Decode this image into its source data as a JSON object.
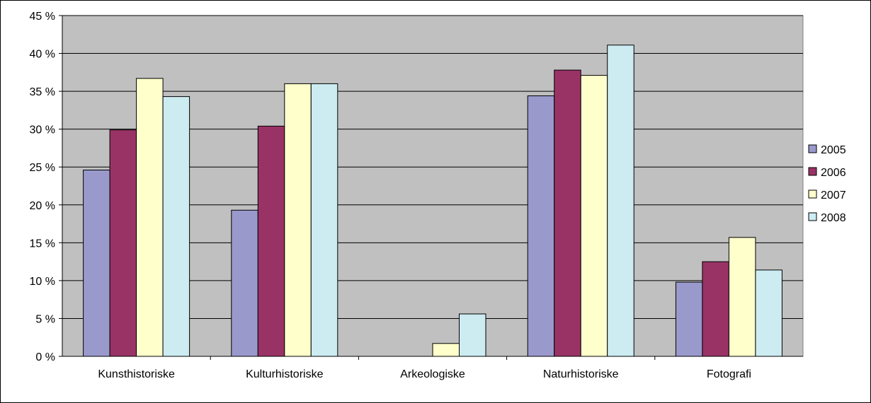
{
  "chart_data": {
    "type": "bar",
    "categories": [
      "Kunsthistoriske",
      "Kulturhistoriske",
      "Arkeologiske",
      "Naturhistoriske",
      "Fotografi"
    ],
    "series": [
      {
        "name": "2005",
        "color": "#9999cc",
        "values": [
          24.6,
          19.3,
          0,
          34.4,
          9.8
        ]
      },
      {
        "name": "2006",
        "color": "#993366",
        "values": [
          29.9,
          30.4,
          0,
          37.8,
          12.5
        ]
      },
      {
        "name": "2007",
        "color": "#ffffcc",
        "values": [
          36.7,
          36.0,
          1.7,
          37.1,
          15.7
        ]
      },
      {
        "name": "2008",
        "color": "#ccecf2",
        "values": [
          34.3,
          36.0,
          5.6,
          41.1,
          11.4
        ]
      }
    ],
    "y_ticks": [
      "0 %",
      "5 %",
      "10 %",
      "15 %",
      "20 %",
      "25 %",
      "30 %",
      "35 %",
      "40 %",
      "45 %"
    ],
    "ylim": [
      0,
      45
    ],
    "grid": true,
    "plot_background": "#c0c0c0",
    "legend_position": "right",
    "title": "",
    "xlabel": "",
    "ylabel": ""
  }
}
